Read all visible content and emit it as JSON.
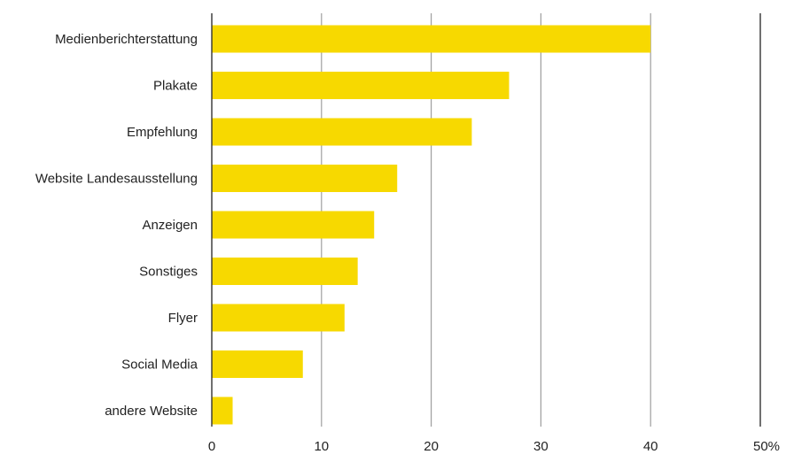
{
  "chart_data": {
    "type": "bar",
    "orientation": "horizontal",
    "title": "",
    "xlabel": "",
    "ylabel": "",
    "categories": [
      "Medienberichterstattung",
      "Plakate",
      "Empfehlung",
      "Website Landesausstellung",
      "Anzeigen",
      "Sonstiges",
      "Flyer",
      "Social Media",
      "andere Website"
    ],
    "values": [
      40,
      27.1,
      23.7,
      16.9,
      14.8,
      13.3,
      12.1,
      8.3,
      1.9
    ],
    "xlim": [
      0,
      50
    ],
    "x_ticks": [
      "0",
      "10",
      "20",
      "30",
      "40",
      "50%"
    ],
    "x_tick_values": [
      0,
      10,
      20,
      30,
      40,
      50
    ],
    "grid": "vertical",
    "legend": "none",
    "bar_color": "#f7d900",
    "grid_color": "#9e9e9e",
    "axis_color": "#333333"
  }
}
